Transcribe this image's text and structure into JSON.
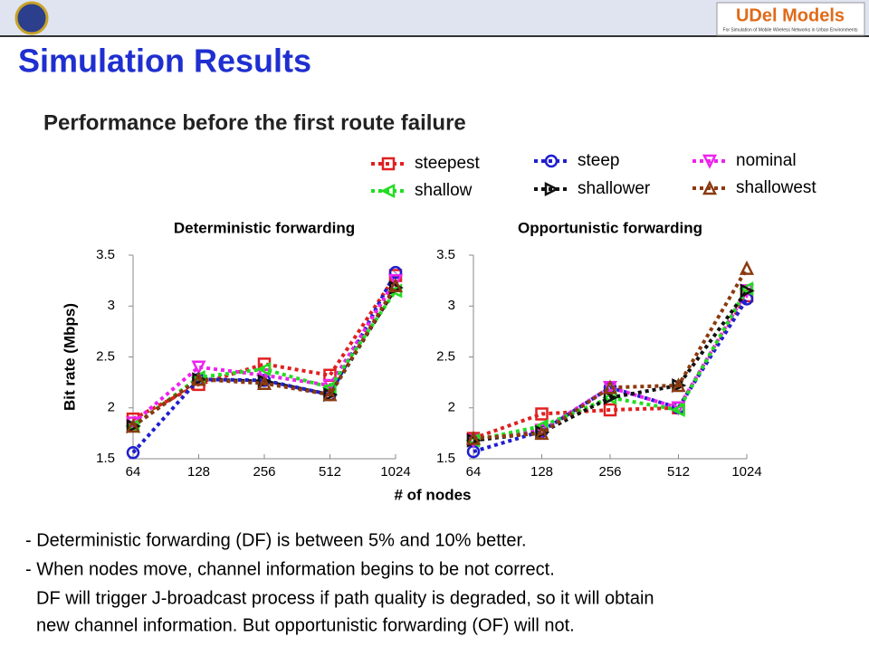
{
  "slide": {
    "logo_title": "UDel Models",
    "logo_tagline": "For Simulation of Mobile Wireless Networks in Urban Environments",
    "title": "Simulation Results",
    "subtitle": "Performance before the first route failure",
    "bullets": [
      "- Deterministic forwarding (DF) is between 5% and 10% better.",
      "- When nodes move, channel information begins to be not correct.",
      "DF will trigger J-broadcast process if path quality is degraded, so it will obtain",
      "new channel information. But opportunistic forwarding (OF) will not."
    ]
  },
  "chart_data": [
    {
      "type": "line",
      "title": "Deterministic forwarding",
      "ylabel": "Bit rate (Mbps)",
      "xlabel": "# of nodes",
      "categories": [
        "64",
        "128",
        "256",
        "512",
        "1024"
      ],
      "ylim": [
        1.5,
        3.5
      ],
      "yticks": [
        1.5,
        2,
        2.5,
        3,
        3.5
      ],
      "series": [
        {
          "name": "steepest",
          "color": "#e02020",
          "marker": "square",
          "values": [
            1.89,
            2.23,
            2.43,
            2.32,
            3.3
          ]
        },
        {
          "name": "steep",
          "color": "#1f1fd0",
          "marker": "circle",
          "values": [
            1.56,
            2.28,
            2.27,
            2.13,
            3.33
          ]
        },
        {
          "name": "nominal",
          "color": "#ee22ee",
          "marker": "tri-down",
          "values": [
            1.85,
            2.4,
            2.32,
            2.22,
            3.25
          ]
        },
        {
          "name": "shallow",
          "color": "#22dd22",
          "marker": "tri-left",
          "values": [
            1.82,
            2.3,
            2.38,
            2.2,
            3.15
          ]
        },
        {
          "name": "shallower",
          "color": "#111111",
          "marker": "tri-right",
          "values": [
            1.82,
            2.28,
            2.26,
            2.13,
            3.18
          ]
        },
        {
          "name": "shallowest",
          "color": "#8b3a0f",
          "marker": "tri-up",
          "values": [
            1.82,
            2.28,
            2.24,
            2.13,
            3.2
          ]
        }
      ]
    },
    {
      "type": "line",
      "title": "Opportunistic forwarding",
      "categories": [
        "64",
        "128",
        "256",
        "512",
        "1024"
      ],
      "ylim": [
        1.5,
        3.5
      ],
      "yticks": [
        1.5,
        2,
        2.5,
        3,
        3.5
      ],
      "series": [
        {
          "color": "#e02020",
          "marker": "square",
          "values": [
            1.7,
            1.94,
            1.98,
            2.0,
            3.1
          ]
        },
        {
          "color": "#1f1fd0",
          "marker": "circle",
          "values": [
            1.57,
            1.77,
            2.2,
            2.0,
            3.07
          ]
        },
        {
          "color": "#ee22ee",
          "marker": "tri-down",
          "values": [
            1.68,
            1.78,
            2.2,
            2.0,
            3.15
          ]
        },
        {
          "color": "#22dd22",
          "marker": "tri-left",
          "values": [
            1.68,
            1.82,
            2.1,
            1.98,
            3.17
          ]
        },
        {
          "color": "#111111",
          "marker": "tri-right",
          "values": [
            1.68,
            1.76,
            2.1,
            2.22,
            3.15
          ]
        },
        {
          "color": "#8b3a0f",
          "marker": "tri-up",
          "values": [
            1.7,
            1.75,
            2.2,
            2.22,
            3.37
          ]
        }
      ]
    }
  ]
}
